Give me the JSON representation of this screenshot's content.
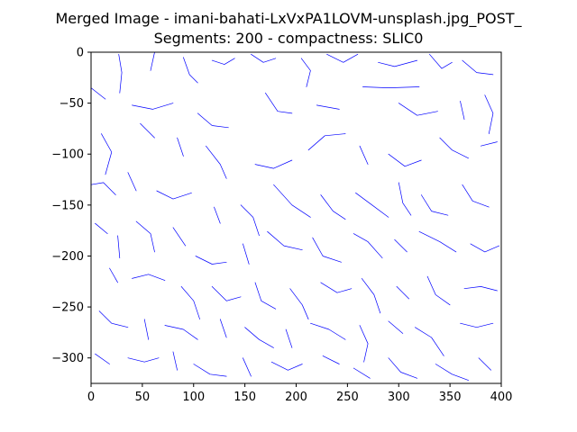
{
  "chart_data": {
    "type": "line",
    "title": "Merged Image - imani-bahati-LxVxPA1LOVM-unsplash.jpg_POST_",
    "subtitle": "Segments: 200 - compactness: SLIC0",
    "xlabel": "",
    "ylabel": "",
    "xlim": [
      0,
      400
    ],
    "ylim": [
      -325,
      0
    ],
    "x_ticks": [
      0,
      50,
      100,
      150,
      200,
      250,
      300,
      350,
      400
    ],
    "y_ticks": [
      0,
      -50,
      -100,
      -150,
      -200,
      -250,
      -300
    ],
    "grid": false,
    "legend": "none",
    "line_color": "#0000ff",
    "series": [
      {
        "values": [
          [
            27,
            -2
          ],
          [
            30,
            -20
          ],
          [
            28,
            -40
          ]
        ]
      },
      {
        "values": [
          [
            62,
            0
          ],
          [
            58,
            -18
          ]
        ]
      },
      {
        "values": [
          [
            90,
            -5
          ],
          [
            96,
            -22
          ],
          [
            104,
            -30
          ]
        ]
      },
      {
        "values": [
          [
            118,
            -8
          ],
          [
            130,
            -12
          ],
          [
            140,
            -6
          ]
        ]
      },
      {
        "values": [
          [
            156,
            -2
          ],
          [
            168,
            -10
          ],
          [
            180,
            -6
          ]
        ]
      },
      {
        "values": [
          [
            205,
            -6
          ],
          [
            214,
            -18
          ],
          [
            210,
            -34
          ]
        ]
      },
      {
        "values": [
          [
            230,
            -2
          ],
          [
            246,
            -10
          ],
          [
            260,
            -2
          ]
        ]
      },
      {
        "values": [
          [
            280,
            -10
          ],
          [
            296,
            -14
          ],
          [
            318,
            -8
          ]
        ]
      },
      {
        "values": [
          [
            330,
            -2
          ],
          [
            342,
            -16
          ],
          [
            352,
            -10
          ]
        ]
      },
      {
        "values": [
          [
            362,
            -8
          ],
          [
            376,
            -20
          ],
          [
            392,
            -22
          ]
        ]
      },
      {
        "values": [
          [
            0,
            -35
          ],
          [
            14,
            -46
          ]
        ]
      },
      {
        "values": [
          [
            40,
            -52
          ],
          [
            60,
            -56
          ],
          [
            80,
            -50
          ]
        ]
      },
      {
        "values": [
          [
            104,
            -60
          ],
          [
            118,
            -72
          ],
          [
            134,
            -74
          ]
        ]
      },
      {
        "values": [
          [
            170,
            -40
          ],
          [
            182,
            -58
          ],
          [
            196,
            -60
          ]
        ]
      },
      {
        "values": [
          [
            220,
            -52
          ],
          [
            242,
            -56
          ]
        ]
      },
      {
        "values": [
          [
            265,
            -34
          ],
          [
            290,
            -35
          ],
          [
            320,
            -34
          ]
        ]
      },
      {
        "values": [
          [
            300,
            -50
          ],
          [
            318,
            -62
          ],
          [
            338,
            -58
          ]
        ]
      },
      {
        "values": [
          [
            360,
            -48
          ],
          [
            364,
            -66
          ]
        ]
      },
      {
        "values": [
          [
            384,
            -42
          ],
          [
            392,
            -60
          ],
          [
            388,
            -80
          ]
        ]
      },
      {
        "values": [
          [
            10,
            -80
          ],
          [
            20,
            -98
          ],
          [
            14,
            -120
          ]
        ]
      },
      {
        "values": [
          [
            48,
            -70
          ],
          [
            62,
            -84
          ]
        ]
      },
      {
        "values": [
          [
            84,
            -84
          ],
          [
            90,
            -102
          ]
        ]
      },
      {
        "values": [
          [
            112,
            -92
          ],
          [
            126,
            -110
          ],
          [
            132,
            -124
          ]
        ]
      },
      {
        "values": [
          [
            160,
            -110
          ],
          [
            178,
            -114
          ],
          [
            196,
            -106
          ]
        ]
      },
      {
        "values": [
          [
            212,
            -96
          ],
          [
            228,
            -82
          ],
          [
            248,
            -80
          ]
        ]
      },
      {
        "values": [
          [
            262,
            -92
          ],
          [
            270,
            -110
          ]
        ]
      },
      {
        "values": [
          [
            290,
            -100
          ],
          [
            306,
            -112
          ],
          [
            322,
            -106
          ]
        ]
      },
      {
        "values": [
          [
            340,
            -84
          ],
          [
            352,
            -96
          ],
          [
            368,
            -104
          ]
        ]
      },
      {
        "values": [
          [
            380,
            -92
          ],
          [
            396,
            -88
          ]
        ]
      },
      {
        "values": [
          [
            0,
            -130
          ],
          [
            12,
            -128
          ],
          [
            24,
            -140
          ]
        ]
      },
      {
        "values": [
          [
            36,
            -118
          ],
          [
            44,
            -136
          ]
        ]
      },
      {
        "values": [
          [
            64,
            -136
          ],
          [
            80,
            -144
          ],
          [
            98,
            -138
          ]
        ]
      },
      {
        "values": [
          [
            120,
            -152
          ],
          [
            126,
            -168
          ]
        ]
      },
      {
        "values": [
          [
            146,
            -150
          ],
          [
            158,
            -162
          ],
          [
            164,
            -180
          ]
        ]
      },
      {
        "values": [
          [
            178,
            -130
          ],
          [
            196,
            -150
          ],
          [
            214,
            -162
          ]
        ]
      },
      {
        "values": [
          [
            224,
            -140
          ],
          [
            236,
            -156
          ],
          [
            248,
            -164
          ]
        ]
      },
      {
        "values": [
          [
            258,
            -138
          ],
          [
            274,
            -150
          ],
          [
            290,
            -162
          ]
        ]
      },
      {
        "values": [
          [
            300,
            -128
          ],
          [
            304,
            -148
          ],
          [
            312,
            -160
          ]
        ]
      },
      {
        "values": [
          [
            322,
            -140
          ],
          [
            332,
            -156
          ],
          [
            348,
            -160
          ]
        ]
      },
      {
        "values": [
          [
            362,
            -130
          ],
          [
            372,
            -146
          ],
          [
            388,
            -152
          ]
        ]
      },
      {
        "values": [
          [
            4,
            -168
          ],
          [
            16,
            -178
          ]
        ]
      },
      {
        "values": [
          [
            26,
            -180
          ],
          [
            28,
            -202
          ]
        ]
      },
      {
        "values": [
          [
            44,
            -166
          ],
          [
            58,
            -178
          ],
          [
            62,
            -196
          ]
        ]
      },
      {
        "values": [
          [
            80,
            -172
          ],
          [
            92,
            -190
          ]
        ]
      },
      {
        "values": [
          [
            102,
            -200
          ],
          [
            118,
            -208
          ],
          [
            132,
            -206
          ]
        ]
      },
      {
        "values": [
          [
            148,
            -188
          ],
          [
            154,
            -208
          ]
        ]
      },
      {
        "values": [
          [
            172,
            -176
          ],
          [
            188,
            -190
          ],
          [
            206,
            -194
          ]
        ]
      },
      {
        "values": [
          [
            216,
            -182
          ],
          [
            226,
            -200
          ],
          [
            244,
            -206
          ]
        ]
      },
      {
        "values": [
          [
            256,
            -178
          ],
          [
            270,
            -186
          ],
          [
            284,
            -202
          ]
        ]
      },
      {
        "values": [
          [
            296,
            -184
          ],
          [
            308,
            -196
          ]
        ]
      },
      {
        "values": [
          [
            320,
            -176
          ],
          [
            340,
            -186
          ],
          [
            356,
            -196
          ]
        ]
      },
      {
        "values": [
          [
            370,
            -188
          ],
          [
            384,
            -196
          ],
          [
            398,
            -190
          ]
        ]
      },
      {
        "values": [
          [
            18,
            -212
          ],
          [
            26,
            -226
          ]
        ]
      },
      {
        "values": [
          [
            40,
            -222
          ],
          [
            56,
            -218
          ],
          [
            72,
            -224
          ]
        ]
      },
      {
        "values": [
          [
            88,
            -230
          ],
          [
            100,
            -244
          ],
          [
            106,
            -262
          ]
        ]
      },
      {
        "values": [
          [
            118,
            -230
          ],
          [
            132,
            -244
          ],
          [
            146,
            -240
          ]
        ]
      },
      {
        "values": [
          [
            160,
            -226
          ],
          [
            166,
            -244
          ],
          [
            180,
            -252
          ]
        ]
      },
      {
        "values": [
          [
            194,
            -232
          ],
          [
            206,
            -248
          ],
          [
            212,
            -262
          ]
        ]
      },
      {
        "values": [
          [
            224,
            -226
          ],
          [
            240,
            -236
          ],
          [
            254,
            -232
          ]
        ]
      },
      {
        "values": [
          [
            264,
            -222
          ],
          [
            276,
            -238
          ],
          [
            282,
            -256
          ]
        ]
      },
      {
        "values": [
          [
            298,
            -230
          ],
          [
            310,
            -242
          ]
        ]
      },
      {
        "values": [
          [
            328,
            -220
          ],
          [
            336,
            -238
          ],
          [
            350,
            -248
          ]
        ]
      },
      {
        "values": [
          [
            364,
            -232
          ],
          [
            380,
            -230
          ],
          [
            396,
            -234
          ]
        ]
      },
      {
        "values": [
          [
            8,
            -254
          ],
          [
            20,
            -266
          ],
          [
            36,
            -270
          ]
        ]
      },
      {
        "values": [
          [
            52,
            -262
          ],
          [
            56,
            -282
          ]
        ]
      },
      {
        "values": [
          [
            72,
            -268
          ],
          [
            90,
            -272
          ],
          [
            104,
            -282
          ]
        ]
      },
      {
        "values": [
          [
            126,
            -262
          ],
          [
            132,
            -280
          ]
        ]
      },
      {
        "values": [
          [
            150,
            -270
          ],
          [
            164,
            -282
          ],
          [
            178,
            -290
          ]
        ]
      },
      {
        "values": [
          [
            190,
            -272
          ],
          [
            196,
            -290
          ]
        ]
      },
      {
        "values": [
          [
            214,
            -266
          ],
          [
            232,
            -272
          ],
          [
            248,
            -282
          ]
        ]
      },
      {
        "values": [
          [
            262,
            -268
          ],
          [
            270,
            -286
          ],
          [
            266,
            -304
          ]
        ]
      },
      {
        "values": [
          [
            290,
            -264
          ],
          [
            304,
            -276
          ]
        ]
      },
      {
        "values": [
          [
            316,
            -270
          ],
          [
            332,
            -280
          ],
          [
            344,
            -298
          ]
        ]
      },
      {
        "values": [
          [
            360,
            -266
          ],
          [
            376,
            -270
          ],
          [
            392,
            -266
          ]
        ]
      },
      {
        "values": [
          [
            4,
            -296
          ],
          [
            18,
            -306
          ]
        ]
      },
      {
        "values": [
          [
            36,
            -300
          ],
          [
            52,
            -304
          ],
          [
            66,
            -300
          ]
        ]
      },
      {
        "values": [
          [
            80,
            -294
          ],
          [
            84,
            -312
          ]
        ]
      },
      {
        "values": [
          [
            100,
            -306
          ],
          [
            116,
            -316
          ],
          [
            132,
            -318
          ]
        ]
      },
      {
        "values": [
          [
            148,
            -300
          ],
          [
            156,
            -318
          ]
        ]
      },
      {
        "values": [
          [
            176,
            -304
          ],
          [
            192,
            -312
          ],
          [
            206,
            -306
          ]
        ]
      },
      {
        "values": [
          [
            226,
            -298
          ],
          [
            242,
            -306
          ]
        ]
      },
      {
        "values": [
          [
            256,
            -310
          ],
          [
            272,
            -320
          ]
        ]
      },
      {
        "values": [
          [
            290,
            -300
          ],
          [
            302,
            -314
          ],
          [
            318,
            -320
          ]
        ]
      },
      {
        "values": [
          [
            336,
            -306
          ],
          [
            352,
            -316
          ],
          [
            368,
            -322
          ]
        ]
      },
      {
        "values": [
          [
            378,
            -300
          ],
          [
            390,
            -312
          ]
        ]
      }
    ]
  }
}
